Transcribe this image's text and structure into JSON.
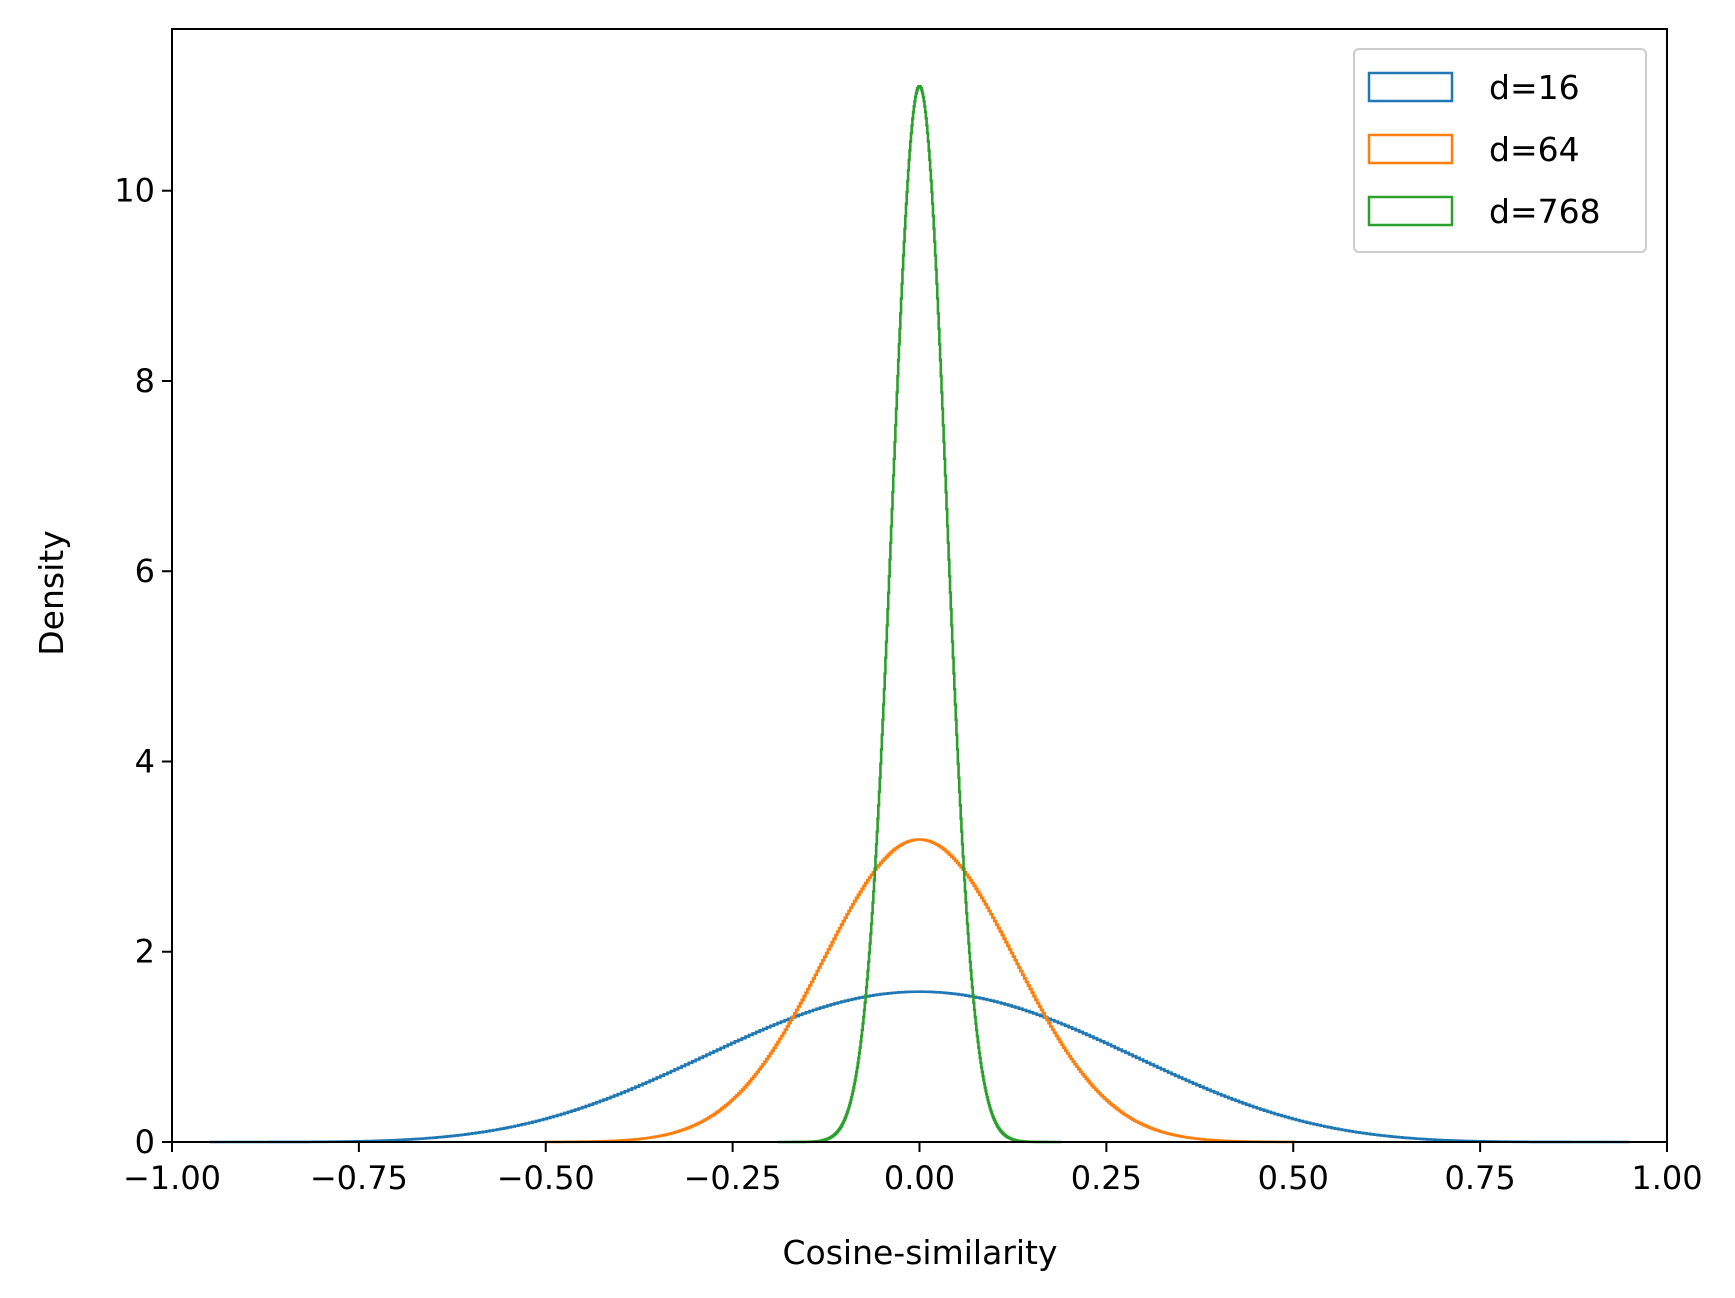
{
  "chart_data": {
    "type": "histogram-step",
    "xlabel": "Cosine-similarity",
    "ylabel": "Density",
    "xlim": [
      -1.0,
      1.0
    ],
    "ylim": [
      0,
      11.7
    ],
    "x_ticks": [
      -1.0,
      -0.75,
      -0.5,
      -0.25,
      0.0,
      0.25,
      0.5,
      0.75,
      1.0
    ],
    "x_tick_labels": [
      "−1.00",
      "−0.75",
      "−0.50",
      "−0.25",
      "0.00",
      "0.25",
      "0.50",
      "0.75",
      "1.00"
    ],
    "y_ticks": [
      0,
      2,
      4,
      6,
      8,
      10
    ],
    "y_tick_labels": [
      "0",
      "2",
      "4",
      "6",
      "8",
      "10"
    ],
    "grid": false,
    "legend_position": "top-right",
    "series": [
      {
        "name": "d=16",
        "color": "#1f77b4",
        "support": [
          -0.95,
          0.95
        ],
        "peak_density": 1.58
      },
      {
        "name": "d=64",
        "color": "#ff7f0e",
        "support": [
          -0.5,
          0.5
        ],
        "peak_density": 3.18
      },
      {
        "name": "d=768",
        "color": "#2ca02c",
        "support": [
          -0.19,
          0.19
        ],
        "peak_density": 11.1
      }
    ]
  }
}
